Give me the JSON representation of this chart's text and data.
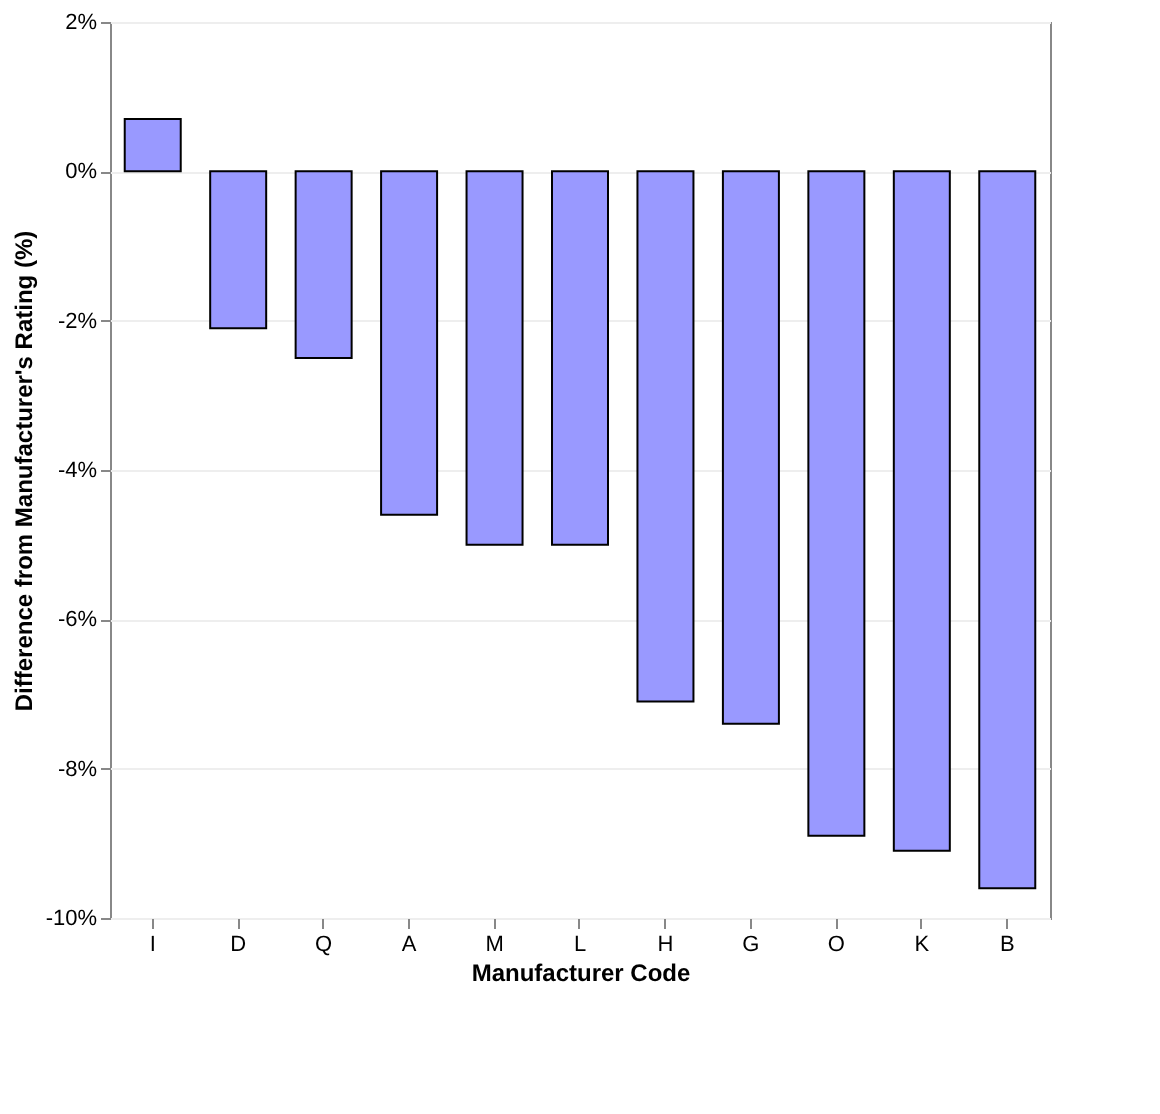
{
  "chart_data": {
    "type": "bar",
    "xlabel": "Manufacturer Code",
    "ylabel": "Difference from Manufacturer's Rating (%)",
    "categories": [
      "I",
      "D",
      "Q",
      "A",
      "M",
      "L",
      "H",
      "G",
      "O",
      "K",
      "B"
    ],
    "values": [
      0.7,
      -2.1,
      -2.5,
      -4.6,
      -5.0,
      -5.0,
      -7.1,
      -7.4,
      -8.9,
      -9.1,
      -9.6
    ],
    "color": "#9999ff",
    "ylim": [
      -10,
      2
    ],
    "yticks": [
      {
        "value": 2,
        "label": "2%"
      },
      {
        "value": 0,
        "label": "0%"
      },
      {
        "value": -2,
        "label": "-2%"
      },
      {
        "value": -4,
        "label": "-4%"
      },
      {
        "value": -6,
        "label": "-6%"
      },
      {
        "value": -8,
        "label": "-8%"
      },
      {
        "value": -10,
        "label": "-10%"
      }
    ],
    "grid": "y"
  }
}
